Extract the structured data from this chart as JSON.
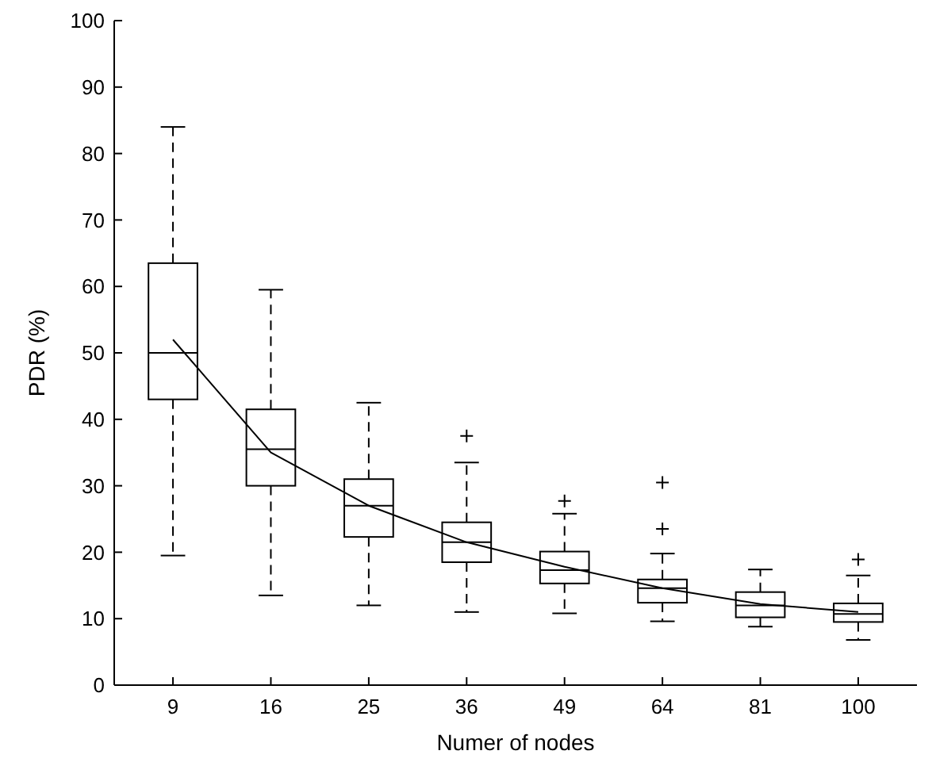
{
  "chart_data": {
    "type": "box",
    "xlabel": "Numer of nodes",
    "ylabel": "PDR (%)",
    "categories": [
      "9",
      "16",
      "25",
      "36",
      "49",
      "64",
      "81",
      "100"
    ],
    "ylim": [
      0,
      100
    ],
    "yticks": [
      0,
      10,
      20,
      30,
      40,
      50,
      60,
      70,
      80,
      90,
      100
    ],
    "grid": false,
    "series": [
      {
        "color": "#000000",
        "boxes": [
          {
            "low": 19.5,
            "q1": 43,
            "median": 50,
            "q3": 63.5,
            "high": 84
          },
          {
            "low": 13.5,
            "q1": 30,
            "median": 35.5,
            "q3": 41.5,
            "high": 59.5
          },
          {
            "low": 12,
            "q1": 22.3,
            "median": 27,
            "q3": 31,
            "high": 42.5
          },
          {
            "low": 11,
            "q1": 18.5,
            "median": 21.5,
            "q3": 24.5,
            "high": 33.5,
            "outliers": [
              37.5
            ]
          },
          {
            "low": 10.8,
            "q1": 15.3,
            "median": 17.3,
            "q3": 20.1,
            "high": 25.8,
            "outliers": [
              27.7
            ]
          },
          {
            "low": 9.6,
            "q1": 12.4,
            "median": 14.6,
            "q3": 15.9,
            "high": 19.8,
            "outliers": [
              23.5,
              30.5
            ]
          },
          {
            "low": 8.8,
            "q1": 10.2,
            "median": 12,
            "q3": 14,
            "high": 17.4
          },
          {
            "low": 6.8,
            "q1": 9.5,
            "median": 10.7,
            "q3": 12.3,
            "high": 16.5,
            "outliers": [
              18.9
            ]
          }
        ]
      },
      {
        "type": "line",
        "color": "#000000",
        "x": [
          "9",
          "16",
          "25",
          "36",
          "49",
          "64",
          "81",
          "100"
        ],
        "values": [
          52,
          35,
          27,
          21.5,
          17.8,
          14.6,
          12.2,
          11
        ],
        "marker": "none"
      }
    ]
  }
}
